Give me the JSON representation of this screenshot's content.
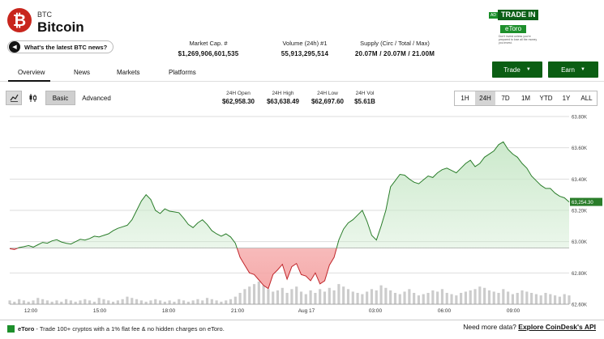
{
  "header": {
    "logo_glyph": "₿",
    "ticker": "BTC",
    "name": "Bitcoin",
    "news_prompt": "What's the latest BTC news?"
  },
  "stats": [
    {
      "label": "Market Cap. #",
      "value": "$1,269,906,601,535"
    },
    {
      "label": "Volume (24h) #1",
      "value": "55,913,295,514"
    },
    {
      "label": "Supply (Circ / Total / Max)",
      "value": "20.07M / 20.07M / 21.00M"
    }
  ],
  "ad": {
    "badge": "AD",
    "headline": "TRADE IN",
    "brand": "eToro",
    "fine_print": "Don't invest unless you're prepared to lose all the money you invest."
  },
  "nav": {
    "tabs": [
      "Overview",
      "News",
      "Markets",
      "Platforms"
    ],
    "active": "Overview"
  },
  "actions": {
    "trade_label": "Trade",
    "earn_label": "Earn"
  },
  "toolbar": {
    "line_icon": "line-chart-icon",
    "candle_icon": "candlestick-icon",
    "modes": [
      "Basic",
      "Advanced"
    ],
    "active_mode": "Basic"
  },
  "range_stats": [
    {
      "label": "24H Open",
      "value": "$62,958.30"
    },
    {
      "label": "24H High",
      "value": "$63,638.49"
    },
    {
      "label": "24H Low",
      "value": "$62,697.60"
    },
    {
      "label": "24H Vol",
      "value": "$5.61B"
    }
  ],
  "timeframes": [
    "1H",
    "24H",
    "7D",
    "1M",
    "YTD",
    "1Y",
    "ALL"
  ],
  "active_timeframe": "24H",
  "chart_data": {
    "type": "area",
    "open": 62958.3,
    "y_ticks": [
      "63.80K",
      "63.60K",
      "63.40K",
      "63.20K",
      "63.00K",
      "62.80K",
      "62.60K"
    ],
    "y_tick_values": [
      63800,
      63600,
      63400,
      63200,
      63000,
      62800,
      62600
    ],
    "x_ticks": [
      "12:00",
      "15:00",
      "18:00",
      "21:00",
      "Aug 17",
      "03:00",
      "06:00",
      "09:00"
    ],
    "last_price_label": "63,254.30",
    "ylim": [
      62600,
      63800
    ],
    "colors": {
      "up_line": "#2a7d2a",
      "up_fill": "#c9e8c9",
      "down_line": "#c0262b",
      "down_fill": "#f5a6a6",
      "volume": "#cccccc",
      "grid": "#dddddd"
    },
    "prices": [
      62955,
      62950,
      62962,
      62968,
      62975,
      62965,
      62980,
      62995,
      62990,
      63005,
      63012,
      62998,
      62990,
      62985,
      63000,
      63015,
      63010,
      63020,
      63035,
      63030,
      63040,
      63050,
      63070,
      63085,
      63095,
      63105,
      63140,
      63200,
      63260,
      63300,
      63270,
      63200,
      63180,
      63210,
      63195,
      63190,
      63185,
      63150,
      63110,
      63090,
      63120,
      63140,
      63110,
      63070,
      63050,
      63035,
      63050,
      63030,
      62990,
      62900,
      62850,
      62800,
      62790,
      62755,
      62720,
      62700,
      62790,
      62820,
      62855,
      62760,
      62840,
      62860,
      62790,
      62780,
      62750,
      62800,
      62730,
      62750,
      62850,
      62900,
      63010,
      63080,
      63120,
      63140,
      63170,
      63200,
      63130,
      63040,
      63010,
      63100,
      63200,
      63350,
      63390,
      63430,
      63425,
      63400,
      63380,
      63370,
      63395,
      63420,
      63410,
      63440,
      63460,
      63470,
      63455,
      63440,
      63470,
      63500,
      63520,
      63480,
      63500,
      63540,
      63560,
      63580,
      63620,
      63638,
      63590,
      63560,
      63540,
      63500,
      63470,
      63420,
      63390,
      63360,
      63340,
      63340,
      63310,
      63290,
      63280,
      63254
    ],
    "volumes": [
      3,
      2,
      4,
      3,
      2,
      3,
      5,
      4,
      3,
      2,
      3,
      2,
      4,
      3,
      2,
      3,
      4,
      3,
      2,
      5,
      4,
      3,
      2,
      3,
      4,
      6,
      5,
      4,
      3,
      2,
      3,
      4,
      3,
      2,
      3,
      2,
      4,
      3,
      2,
      3,
      4,
      3,
      5,
      4,
      3,
      2,
      3,
      4,
      6,
      9,
      12,
      14,
      16,
      18,
      15,
      12,
      10,
      11,
      13,
      9,
      12,
      14,
      10,
      8,
      11,
      9,
      12,
      10,
      13,
      11,
      16,
      14,
      12,
      10,
      9,
      8,
      10,
      12,
      11,
      15,
      13,
      11,
      9,
      8,
      10,
      12,
      9,
      7,
      8,
      9,
      11,
      10,
      12,
      9,
      8,
      7,
      9,
      10,
      11,
      12,
      14,
      13,
      11,
      10,
      9,
      12,
      10,
      8,
      9,
      11,
      10,
      9,
      8,
      7,
      9,
      8,
      7,
      6,
      8,
      7
    ]
  },
  "footer": {
    "promo_brand": "eToro",
    "promo_text": "- Trade 100+ cryptos with a 1% flat fee & no hidden charges on eToro.",
    "api_question": "Need more data?",
    "api_link": "Explore CoinDesk's API"
  }
}
